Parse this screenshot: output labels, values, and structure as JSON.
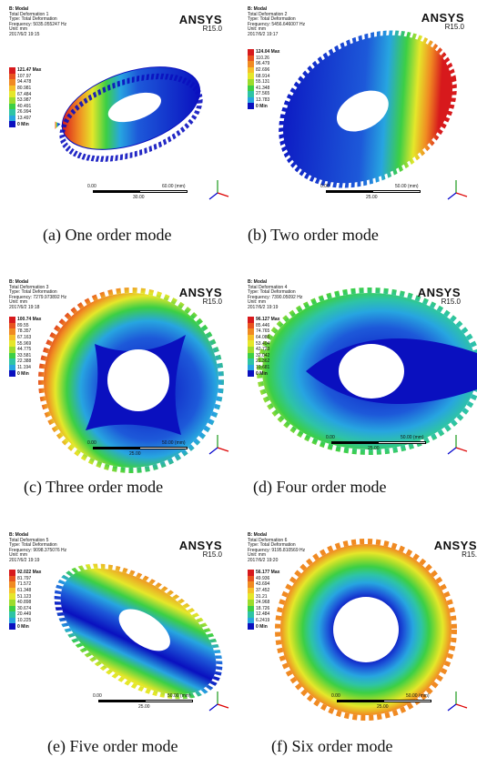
{
  "colors": {
    "legend_scale": [
      "#d7191c",
      "#e8531e",
      "#f08a22",
      "#f6c028",
      "#e5e72a",
      "#9ddc2c",
      "#3ccf45",
      "#2ec4a5",
      "#27a5e0",
      "#1d59d9",
      "#0a10bf"
    ]
  },
  "panels": [
    {
      "header": [
        "B: Modal",
        "Total Deformation 1",
        "Type: Total Deformation",
        "Frequency: 5035.055247 Hz",
        "Unit: mm",
        "2017/6/2 19:15"
      ],
      "ansys": "ANSYS",
      "version": "R15.0",
      "legend": [
        "121.47 Max",
        "107.97",
        "94.478",
        "80.981",
        "67.484",
        "53.987",
        "40.491",
        "26.994",
        "13.497",
        "0 Min"
      ],
      "scale": {
        "left": "0.00",
        "right": "60.00 (mm)",
        "mid": "30.00"
      },
      "caption": "(a) One order mode"
    },
    {
      "header": [
        "B: Modal",
        "Total Deformation 2",
        "Type: Total Deformation",
        "Frequency: 5456.646007 Hz",
        "Unit: mm",
        "2017/6/2 19:17"
      ],
      "ansys": "ANSYS",
      "version": "R15.0",
      "legend": [
        "124.04 Max",
        "110.26",
        "96.479",
        "82.696",
        "68.914",
        "55.131",
        "41.348",
        "27.565",
        "13.783",
        "0 Min"
      ],
      "scale": {
        "left": "0.00",
        "right": "50.00 (mm)",
        "mid": "25.00"
      },
      "caption": "(b) Two order mode"
    },
    {
      "header": [
        "B: Modal",
        "Total Deformation 3",
        "Type: Total Deformation",
        "Frequency: 7279.973892 Hz",
        "Unit: mm",
        "2017/6/2 19:18"
      ],
      "ansys": "ANSYS",
      "version": "R15.0",
      "legend": [
        "100.74 Max",
        "89.55",
        "78.357",
        "67.163",
        "55.969",
        "44.775",
        "33.581",
        "22.388",
        "11.194",
        "0 Min"
      ],
      "scale": {
        "left": "0.00",
        "right": "50.00 (mm)",
        "mid": "25.00"
      },
      "caption": "(c) Three order mode"
    },
    {
      "header": [
        "B: Modal",
        "Total Deformation 4",
        "Type: Total Deformation",
        "Frequency: 7390.05092 Hz",
        "Unit: mm",
        "2017/6/2 19:19"
      ],
      "ansys": "ANSYS",
      "version": "R15.0",
      "legend": [
        "96.127 Max",
        "85.446",
        "74.765",
        "64.085",
        "53.404",
        "42.723",
        "32.042",
        "21.362",
        "10.681",
        "0 Min"
      ],
      "scale": {
        "left": "0.00",
        "right": "50.00 (mm)",
        "mid": "25.00"
      },
      "caption": "(d) Four order mode"
    },
    {
      "header": [
        "B: Modal",
        "Total Deformation 5",
        "Type: Total Deformation",
        "Frequency: 9098.375076 Hz",
        "Unit: mm",
        "2017/6/2 19:19"
      ],
      "ansys": "ANSYS",
      "version": "R15.0",
      "legend": [
        "92.022 Max",
        "81.797",
        "71.572",
        "61.348",
        "51.123",
        "40.898",
        "30.674",
        "20.449",
        "10.225",
        "0 Min"
      ],
      "scale": {
        "left": "0.00",
        "right": "50.00 (mm)",
        "mid": "25.00"
      },
      "caption": "(e) Five order mode"
    },
    {
      "header": [
        "B: Modal",
        "Total Deformation 6",
        "Type: Total Deformation",
        "Frequency: 9195.810569 Hz",
        "Unit: mm",
        "2017/6/2 19:20"
      ],
      "ansys": "ANSYS",
      "version": "R15.",
      "legend": [
        "56.177 Max",
        "49.936",
        "43.694",
        "37.452",
        "31.21",
        "24.968",
        "18.726",
        "12.484",
        "6.2419",
        "0 Min"
      ],
      "scale": {
        "left": "0.00",
        "right": "50.00 (mm)",
        "mid": "25.00"
      },
      "caption": "(f) Six order mode"
    }
  ]
}
